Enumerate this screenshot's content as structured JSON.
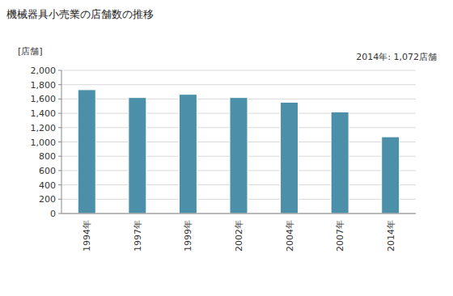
{
  "chart_data": {
    "type": "bar",
    "title": "機械器具小売業の店舗数の推移",
    "y_label": "[店舗]",
    "annotation": "2014年: 1,072店舗",
    "categories": [
      "1994年",
      "1997年",
      "1999年",
      "2002年",
      "2004年",
      "2007年",
      "2014年"
    ],
    "values": [
      1730,
      1620,
      1665,
      1620,
      1555,
      1420,
      1072
    ],
    "color": "#4b8fa9",
    "ylim": [
      0,
      2000
    ],
    "yticks": [
      0,
      200,
      400,
      600,
      800,
      {
        "value": 1000,
        "label": "1,000"
      },
      {
        "value": 1200,
        "label": "1,200"
      },
      {
        "value": 1400,
        "label": "1,400"
      },
      {
        "value": 1600,
        "label": "1,600"
      },
      {
        "value": 1800,
        "label": "1,800"
      },
      {
        "value": 2000,
        "label": "2,000"
      }
    ],
    "grid": true
  }
}
